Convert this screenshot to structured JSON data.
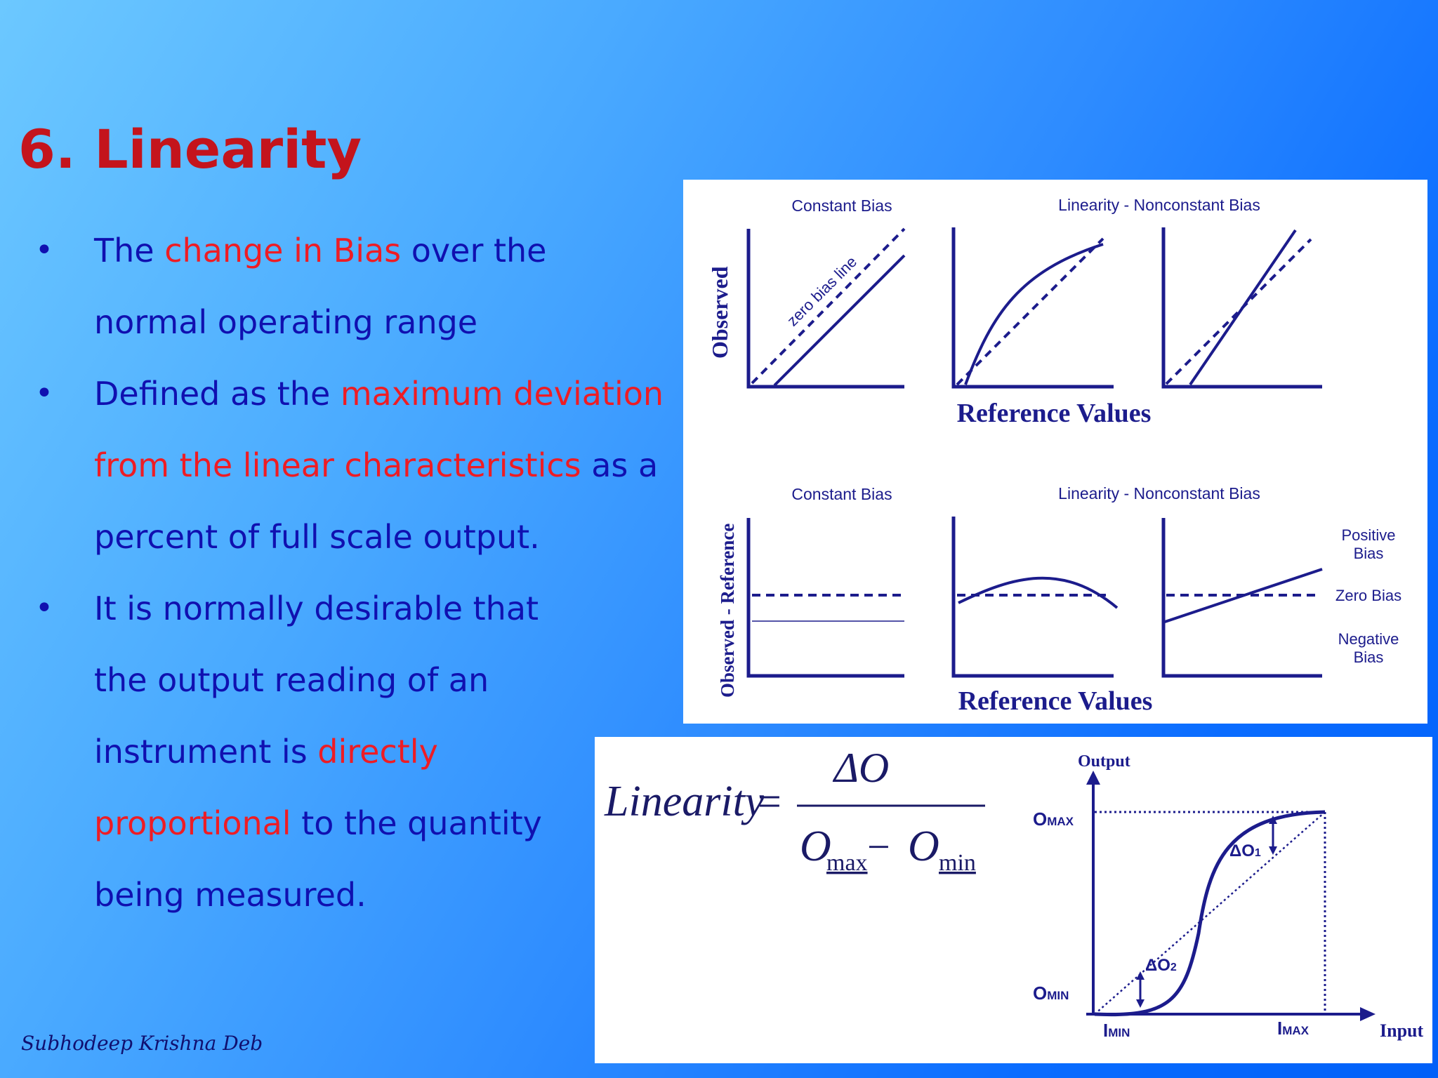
{
  "slide": {
    "title": "6. Linearity",
    "bullets": [
      {
        "parts": [
          {
            "text": "The ",
            "highlight": false
          },
          {
            "text": "change in Bias",
            "highlight": true
          },
          {
            "text": " over the normal operating range",
            "highlight": false
          }
        ]
      },
      {
        "parts": [
          {
            "text": "Defined as the ",
            "highlight": false
          },
          {
            "text": "maximum deviation from the linear characteristics",
            "highlight": true
          },
          {
            "text": " as a percent of full scale output.",
            "highlight": false
          }
        ]
      },
      {
        "parts": [
          {
            "text": "It is normally desirable that the output reading of an instrument is ",
            "highlight": false
          },
          {
            "text": "directly proportional",
            "highlight": true
          },
          {
            "text": " to the quantity being measured.",
            "highlight": false
          }
        ]
      }
    ],
    "author": "Subhodeep Krishna Deb",
    "colors": {
      "title": "#c4141c",
      "text": "#1010b0",
      "highlight": "#ee1c24",
      "figure_ink": "#1c1c8c"
    }
  },
  "figure_top": {
    "row1": {
      "constant_title": "Constant Bias",
      "nonconstant_title": "Linearity - Nonconstant Bias",
      "ylabel": "Observed",
      "zero_bias_label": "zero bias line",
      "xlabel": "Reference Values"
    },
    "row2": {
      "constant_title": "Constant Bias",
      "nonconstant_title": "Linearity - Nonconstant Bias",
      "ylabel": "Observed - Reference",
      "xlabel": "Reference Values",
      "positive_bias": [
        "Positive",
        "Bias"
      ],
      "zero_bias": "Zero Bias",
      "negative_bias": [
        "Negative",
        "Bias"
      ]
    }
  },
  "figure_bottom": {
    "formula": {
      "lhs": "Linearity",
      "numerator": "ΔO",
      "den_a": "O",
      "den_a_sub": "max",
      "den_minus": " − ",
      "den_b": "O",
      "den_b_sub": "min"
    },
    "graph": {
      "y_axis": "Output",
      "x_axis": "Input",
      "o_max": {
        "main": "O",
        "sub": "MAX"
      },
      "o_min": {
        "main": "O",
        "sub": "MIN"
      },
      "i_min": {
        "main": "I",
        "sub": "MIN"
      },
      "i_max": {
        "main": "I",
        "sub": "MAX"
      },
      "delta_o1": {
        "main": "ΔO",
        "sub": "1"
      },
      "delta_o2": {
        "main": "ΔO",
        "sub": "2"
      }
    }
  }
}
